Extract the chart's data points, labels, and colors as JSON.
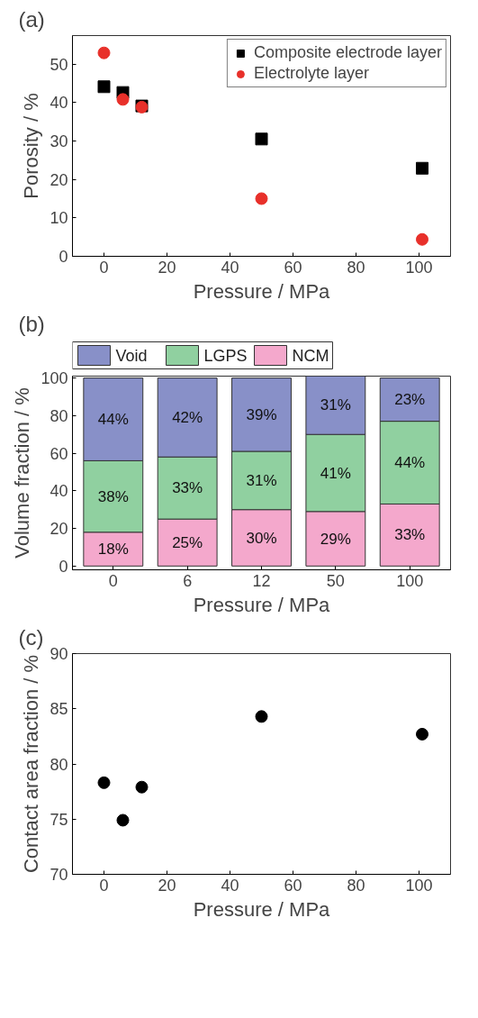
{
  "chart_data": [
    {
      "type": "scatter",
      "title": "(a)",
      "xlabel": "Pressure / MPa",
      "ylabel": "Porosity / %",
      "xlim": [
        -10,
        110
      ],
      "ylim": [
        0,
        57.4
      ],
      "xticks": [
        0,
        20,
        40,
        60,
        80,
        100
      ],
      "yticks": [
        0,
        10,
        20,
        30,
        40,
        50
      ],
      "grid": false,
      "legend": "top right",
      "series": [
        {
          "name": "Composite electrode layer",
          "color": "#000000",
          "marker": "square",
          "x": [
            0,
            6,
            12,
            50,
            101
          ],
          "values": [
            44.1,
            42.6,
            39.1,
            30.5,
            22.9
          ]
        },
        {
          "name": "Electrolyte layer",
          "color": "#e8302a",
          "marker": "circle",
          "x": [
            0,
            6,
            12,
            50,
            101
          ],
          "values": [
            52.9,
            40.8,
            38.8,
            15.0,
            4.4
          ]
        }
      ]
    },
    {
      "type": "bar",
      "stacked": true,
      "title": "(b)",
      "xlabel": "Pressure / MPa",
      "ylabel": "Volume fraction / %",
      "categories": [
        "0",
        "6",
        "12",
        "50",
        "100"
      ],
      "ylim": [
        -2,
        101
      ],
      "yticks": [
        0,
        20,
        40,
        60,
        80,
        100
      ],
      "grid": false,
      "legend": "top",
      "series": [
        {
          "name": "NCM",
          "color": "#f4a8cc",
          "values": [
            18,
            25,
            30,
            29,
            33
          ],
          "value_labels": [
            "18%",
            "25%",
            "30%",
            "29%",
            "33%"
          ]
        },
        {
          "name": "LGPS",
          "color": "#90d0a0",
          "values": [
            38,
            33,
            31,
            41,
            44
          ],
          "value_labels": [
            "38%",
            "33%",
            "31%",
            "41%",
            "44%"
          ]
        },
        {
          "name": "Void",
          "color": "#8890c8",
          "values": [
            44,
            42,
            39,
            31,
            23
          ],
          "value_labels": [
            "44%",
            "42%",
            "39%",
            "31%",
            "23%"
          ]
        }
      ]
    },
    {
      "type": "scatter",
      "title": "(c)",
      "xlabel": "Pressure / MPa",
      "ylabel": "Contact area fraction / %",
      "xlim": [
        -10,
        110
      ],
      "ylim": [
        70,
        90
      ],
      "xticks": [
        0,
        20,
        40,
        60,
        80,
        100
      ],
      "yticks": [
        70,
        75,
        80,
        85,
        90
      ],
      "grid": false,
      "marker": "circle",
      "series": [
        {
          "color": "#000000",
          "x": [
            0,
            6,
            12,
            50,
            101
          ],
          "values": [
            78.3,
            74.9,
            77.9,
            84.3,
            82.7
          ]
        }
      ]
    }
  ]
}
